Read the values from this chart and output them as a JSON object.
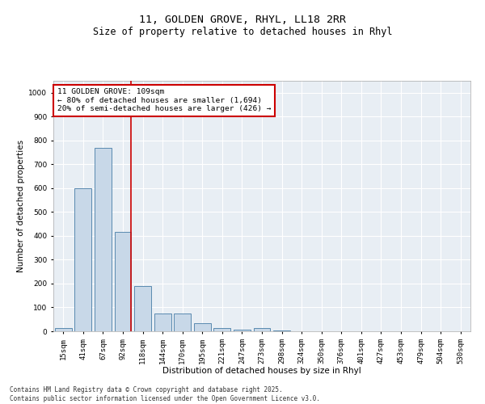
{
  "title1": "11, GOLDEN GROVE, RHYL, LL18 2RR",
  "title2": "Size of property relative to detached houses in Rhyl",
  "xlabel": "Distribution of detached houses by size in Rhyl",
  "ylabel": "Number of detached properties",
  "categories": [
    "15sqm",
    "41sqm",
    "67sqm",
    "92sqm",
    "118sqm",
    "144sqm",
    "170sqm",
    "195sqm",
    "221sqm",
    "247sqm",
    "273sqm",
    "298sqm",
    "324sqm",
    "350sqm",
    "376sqm",
    "401sqm",
    "427sqm",
    "453sqm",
    "479sqm",
    "504sqm",
    "530sqm"
  ],
  "values": [
    15,
    600,
    770,
    415,
    190,
    75,
    75,
    35,
    15,
    8,
    12,
    5,
    0,
    0,
    0,
    0,
    0,
    0,
    0,
    0,
    0
  ],
  "bar_color": "#c8d8e8",
  "bar_edge_color": "#5a8ab0",
  "vline_color": "#cc0000",
  "vline_xindex": 3.4,
  "annotation_text": "11 GOLDEN GROVE: 109sqm\n← 80% of detached houses are smaller (1,694)\n20% of semi-detached houses are larger (426) →",
  "annotation_box_color": "#cc0000",
  "ylim": [
    0,
    1050
  ],
  "yticks": [
    0,
    100,
    200,
    300,
    400,
    500,
    600,
    700,
    800,
    900,
    1000
  ],
  "bg_color": "#e8eef4",
  "grid_color": "#ffffff",
  "footnote": "Contains HM Land Registry data © Crown copyright and database right 2025.\nContains public sector information licensed under the Open Government Licence v3.0.",
  "title_fontsize": 9.5,
  "subtitle_fontsize": 8.5,
  "label_fontsize": 7.5,
  "tick_fontsize": 6.5,
  "annot_fontsize": 6.8,
  "footnote_fontsize": 5.5
}
